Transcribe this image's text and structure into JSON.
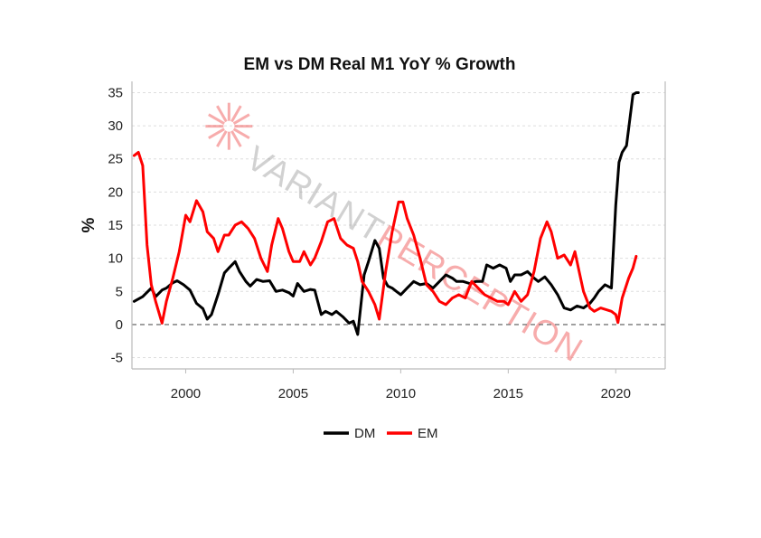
{
  "chart_data": {
    "type": "line",
    "title": "EM vs DM Real M1 YoY % Growth",
    "xlabel": "",
    "ylabel": "%",
    "xlim": [
      1997.5,
      2022.3
    ],
    "ylim": [
      -6.7,
      36.7
    ],
    "xticks": [
      2000,
      2005,
      2010,
      2015,
      2020
    ],
    "yticks": [
      -5,
      0,
      5,
      10,
      15,
      20,
      25,
      30,
      35
    ],
    "grid": "horizontal dashed",
    "zero_line": "dashed",
    "legend_position": "bottom-center",
    "series": [
      {
        "name": "DM",
        "color": "#000000",
        "x": [
          1997.6,
          1998.0,
          1998.4,
          1998.6,
          1998.9,
          1999.1,
          1999.4,
          1999.6,
          1999.9,
          2000.2,
          2000.5,
          2000.8,
          2001.0,
          2001.2,
          2001.5,
          2001.8,
          2002.0,
          2002.3,
          2002.5,
          2002.8,
          2003.0,
          2003.3,
          2003.6,
          2003.9,
          2004.2,
          2004.5,
          2004.8,
          2005.0,
          2005.2,
          2005.5,
          2005.8,
          2006.0,
          2006.3,
          2006.5,
          2006.8,
          2007.0,
          2007.3,
          2007.6,
          2007.8,
          2008.0,
          2008.3,
          2008.5,
          2008.8,
          2009.0,
          2009.2,
          2009.4,
          2009.6,
          2009.8,
          2010.0,
          2010.3,
          2010.6,
          2010.9,
          2011.2,
          2011.5,
          2011.8,
          2012.1,
          2012.4,
          2012.6,
          2012.9,
          2013.2,
          2013.5,
          2013.8,
          2014.0,
          2014.3,
          2014.6,
          2014.9,
          2015.1,
          2015.3,
          2015.6,
          2015.9,
          2016.2,
          2016.4,
          2016.7,
          2017.0,
          2017.3,
          2017.6,
          2017.9,
          2018.2,
          2018.5,
          2018.8,
          2019.0,
          2019.2,
          2019.5,
          2019.8,
          2020.0,
          2020.15,
          2020.3,
          2020.5,
          2020.8,
          2020.95,
          2021.05
        ],
        "values": [
          3.5,
          4.2,
          5.5,
          4.2,
          5.2,
          5.5,
          6.3,
          6.6,
          6.0,
          5.2,
          3.2,
          2.4,
          0.8,
          1.5,
          4.5,
          7.8,
          8.5,
          9.5,
          8.0,
          6.5,
          5.8,
          6.8,
          6.5,
          6.6,
          5.0,
          5.2,
          4.8,
          4.3,
          6.2,
          5.0,
          5.3,
          5.2,
          1.5,
          2.0,
          1.5,
          2.0,
          1.2,
          0.2,
          0.5,
          -1.5,
          7.5,
          9.5,
          12.7,
          11.5,
          7.0,
          5.8,
          5.5,
          5.0,
          4.5,
          5.5,
          6.5,
          6.0,
          6.2,
          5.5,
          6.5,
          7.5,
          7.0,
          6.5,
          6.5,
          6.2,
          6.5,
          6.5,
          9.0,
          8.5,
          9.0,
          8.5,
          6.5,
          7.5,
          7.5,
          8.0,
          7.0,
          6.5,
          7.2,
          6.0,
          4.5,
          2.5,
          2.2,
          2.8,
          2.5,
          3.2,
          4.0,
          5.0,
          6.0,
          5.5,
          18.0,
          24.5,
          26.0,
          27.0,
          34.7,
          35.0,
          35.0
        ]
      },
      {
        "name": "EM",
        "color": "#ff0000",
        "x": [
          1997.6,
          1997.8,
          1998.0,
          1998.2,
          1998.4,
          1998.6,
          1998.9,
          1999.1,
          1999.4,
          1999.7,
          2000.0,
          2000.2,
          2000.5,
          2000.8,
          2001.0,
          2001.3,
          2001.5,
          2001.8,
          2002.0,
          2002.3,
          2002.6,
          2002.9,
          2003.2,
          2003.5,
          2003.8,
          2004.0,
          2004.3,
          2004.5,
          2004.8,
          2005.0,
          2005.3,
          2005.5,
          2005.8,
          2006.0,
          2006.3,
          2006.6,
          2006.9,
          2007.2,
          2007.5,
          2007.8,
          2008.0,
          2008.2,
          2008.5,
          2008.8,
          2009.0,
          2009.3,
          2009.6,
          2009.9,
          2010.1,
          2010.3,
          2010.6,
          2010.9,
          2011.2,
          2011.5,
          2011.8,
          2012.1,
          2012.4,
          2012.7,
          2013.0,
          2013.3,
          2013.6,
          2013.9,
          2014.2,
          2014.5,
          2014.8,
          2015.0,
          2015.3,
          2015.6,
          2015.9,
          2016.2,
          2016.5,
          2016.8,
          2017.0,
          2017.3,
          2017.6,
          2017.9,
          2018.1,
          2018.3,
          2018.5,
          2018.8,
          2019.0,
          2019.3,
          2019.5,
          2019.8,
          2020.0,
          2020.1,
          2020.3,
          2020.6,
          2020.8,
          2020.95
        ],
        "values": [
          25.5,
          26.0,
          24.0,
          12.0,
          6.0,
          3.5,
          0.2,
          3.5,
          7.0,
          11.0,
          16.5,
          15.5,
          18.7,
          17.0,
          14.0,
          13.0,
          11.0,
          13.5,
          13.5,
          15.0,
          15.5,
          14.5,
          13.0,
          10.0,
          8.0,
          12.0,
          16.0,
          14.5,
          11.0,
          9.5,
          9.5,
          11.0,
          9.0,
          10.0,
          12.5,
          15.5,
          16.0,
          13.0,
          12.0,
          11.5,
          9.5,
          6.5,
          5.0,
          3.0,
          0.8,
          8.0,
          14.0,
          18.5,
          18.5,
          16.0,
          13.5,
          10.0,
          6.0,
          5.0,
          3.5,
          3.0,
          4.0,
          4.5,
          4.0,
          6.5,
          5.5,
          4.5,
          4.0,
          3.5,
          3.5,
          3.0,
          5.0,
          3.5,
          4.5,
          8.0,
          13.0,
          15.5,
          14.0,
          10.0,
          10.5,
          9.0,
          11.0,
          8.0,
          5.0,
          2.5,
          2.0,
          2.5,
          2.3,
          2.0,
          1.5,
          0.3,
          4.0,
          7.0,
          8.5,
          10.3
        ]
      }
    ]
  },
  "watermark": {
    "part1": "VARIANT",
    "part2": "PERCEPTION",
    "color1": "#9a9a9a",
    "color2": "#ef4a4a"
  },
  "colors": {
    "grid": "#dddddd",
    "axes": "#bbbbbb",
    "zero": "#777777"
  }
}
